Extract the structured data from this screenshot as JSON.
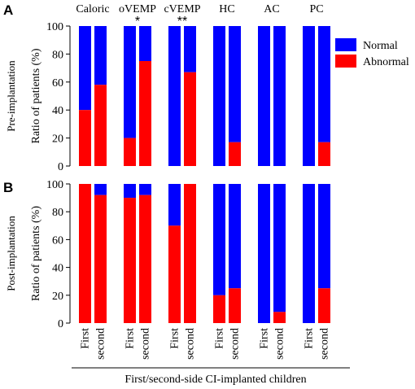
{
  "colors": {
    "normal": "#0000ff",
    "abnormal": "#ff0000"
  },
  "chart_data": {
    "type": "bar",
    "stacked": true,
    "groups": [
      "Caloric",
      "oVEMP",
      "cVEMP",
      "HC",
      "AC",
      "PC"
    ],
    "bars_per_group": [
      "First",
      "second"
    ],
    "significance": [
      "",
      "*",
      "**",
      "",
      "",
      ""
    ],
    "legend": [
      {
        "name": "Normal",
        "color_key": "normal"
      },
      {
        "name": "Abnormal",
        "color_key": "abnormal"
      }
    ],
    "legend_position": "right",
    "ylabel": "Ratio of patients (%)",
    "ylim": [
      0,
      100
    ],
    "yticks": [
      0,
      20,
      40,
      60,
      80,
      100
    ],
    "xlabel": "First/second-side CI-implanted children",
    "panels": [
      {
        "letter": "A",
        "row_label": "Pre-implantation",
        "abnormal_percent": {
          "Caloric": [
            40,
            58
          ],
          "oVEMP": [
            20,
            75
          ],
          "cVEMP": [
            0,
            67
          ],
          "HC": [
            0,
            17
          ],
          "AC": [
            0,
            0
          ],
          "PC": [
            0,
            17
          ]
        }
      },
      {
        "letter": "B",
        "row_label": "Post-implantation",
        "abnormal_percent": {
          "Caloric": [
            100,
            92
          ],
          "oVEMP": [
            90,
            92
          ],
          "cVEMP": [
            70,
            100
          ],
          "HC": [
            20,
            25
          ],
          "AC": [
            0,
            8
          ],
          "PC": [
            0,
            25
          ]
        }
      }
    ]
  }
}
